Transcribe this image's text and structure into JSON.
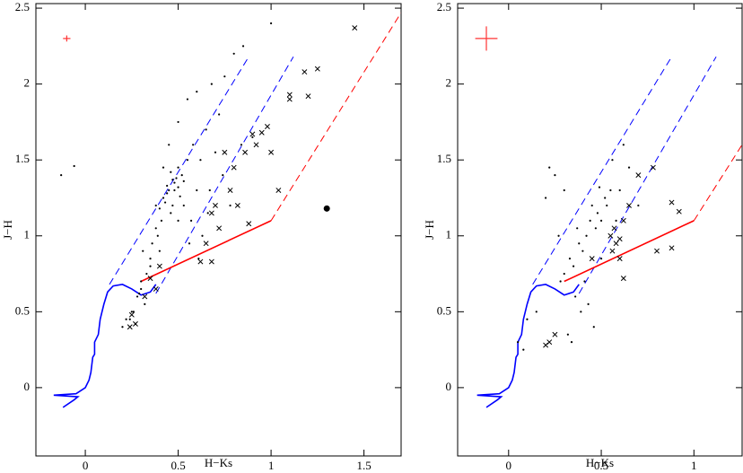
{
  "chart_data": [
    {
      "type": "scatter",
      "xlabel": "H−Ks",
      "ylabel": "J−H",
      "xlim": [
        -0.266,
        1.7
      ],
      "ylim": [
        -0.45,
        2.53
      ],
      "xticks": [
        0,
        0.5,
        1,
        1.5
      ],
      "yticks": [
        0,
        0.5,
        1,
        1.5,
        2,
        2.5
      ],
      "dots": {
        "color": "#000000",
        "x": [
          0.45,
          0.48,
          0.5,
          0.42,
          0.52,
          0.47,
          0.44,
          0.5,
          0.53,
          0.46,
          0.4,
          0.43,
          0.49,
          0.51,
          0.55,
          0.38,
          0.41,
          0.36,
          0.35,
          0.6,
          0.62,
          0.58,
          0.65,
          0.7,
          0.72,
          0.3,
          0.28,
          0.25,
          0.22,
          0.33,
          0.32,
          0.27,
          0.45,
          0.5,
          0.55,
          0.6,
          0.68,
          0.75,
          0.8,
          0.85,
          0.4,
          0.35,
          0.3,
          0.2,
          0.24,
          0.26,
          0.29,
          0.31,
          0.38,
          0.42,
          0.57,
          0.63,
          0.67,
          0.78,
          0.9,
          -0.13,
          -0.06,
          0.84,
          1.0,
          0.48,
          0.46,
          0.53,
          0.5,
          0.44,
          0.47,
          0.39,
          0.56,
          0.61,
          0.66,
          0.74
        ],
        "y": [
          1.3,
          1.35,
          1.32,
          1.25,
          1.4,
          1.2,
          1.28,
          1.45,
          1.36,
          1.15,
          1.18,
          1.22,
          1.38,
          1.26,
          1.5,
          1.05,
          1.1,
          0.95,
          0.85,
          1.3,
          1.5,
          1.6,
          1.7,
          1.55,
          1.8,
          0.65,
          0.6,
          0.5,
          0.45,
          0.75,
          0.55,
          0.42,
          1.6,
          1.75,
          1.9,
          1.95,
          2.0,
          2.05,
          2.2,
          2.25,
          0.9,
          0.8,
          0.7,
          0.4,
          0.45,
          0.5,
          0.62,
          0.9,
          1.2,
          1.45,
          1.1,
          1.0,
          1.3,
          1.2,
          1.65,
          1.4,
          1.46,
          1.6,
          2.4,
          1.3,
          1.42,
          1.2,
          1.1,
          1.33,
          1.37,
          1.0,
          0.95,
          0.85,
          1.15,
          1.4
        ]
      },
      "crosses": {
        "color": "#000000",
        "x": [
          1.45,
          1.18,
          1.25,
          1.2,
          1.1,
          1.1,
          0.98,
          0.95,
          0.9,
          0.92,
          0.86,
          1.0,
          0.75,
          0.8,
          0.78,
          0.82,
          0.7,
          0.68,
          0.88,
          0.72,
          0.65,
          0.68,
          0.62,
          1.04,
          0.4,
          0.35,
          0.38,
          0.32,
          0.25,
          0.27,
          0.24
        ],
        "y": [
          2.37,
          2.08,
          2.1,
          1.92,
          1.93,
          1.9,
          1.72,
          1.68,
          1.67,
          1.6,
          1.55,
          1.55,
          1.55,
          1.45,
          1.3,
          1.2,
          1.2,
          1.15,
          1.08,
          1.05,
          0.95,
          0.83,
          0.83,
          1.3,
          0.8,
          0.72,
          0.65,
          0.6,
          0.48,
          0.42,
          0.4
        ]
      },
      "big_dot": {
        "color": "#000000",
        "x": 1.3,
        "y": 1.18
      },
      "error_bar": {
        "color": "#ff3333",
        "x": -0.1,
        "y": 2.3,
        "xerr": 0.02,
        "yerr": 0.02
      },
      "lines": [
        {
          "color": "#0000ff",
          "dash": false,
          "x": [
            -0.12,
            -0.06,
            -0.04,
            -0.17,
            -0.05,
            0.0,
            0.02,
            0.03,
            0.04,
            0.05,
            0.05,
            0.07,
            0.08,
            0.1,
            0.12,
            0.15,
            0.2,
            0.25,
            0.3,
            0.35,
            0.38
          ],
          "y": [
            -0.13,
            -0.08,
            -0.06,
            -0.05,
            -0.04,
            0.0,
            0.05,
            0.1,
            0.2,
            0.22,
            0.3,
            0.35,
            0.45,
            0.55,
            0.63,
            0.67,
            0.68,
            0.65,
            0.61,
            0.63,
            0.68
          ]
        },
        {
          "color": "#0000ff",
          "dash": true,
          "x": [
            0.13,
            0.88
          ],
          "y": [
            0.68,
            2.18
          ]
        },
        {
          "color": "#0000ff",
          "dash": true,
          "x": [
            0.38,
            1.12
          ],
          "y": [
            0.62,
            2.18
          ]
        },
        {
          "color": "#ff0000",
          "dash": false,
          "x": [
            0.3,
            1.0
          ],
          "y": [
            0.7,
            1.1
          ]
        },
        {
          "color": "#ff0000",
          "dash": true,
          "x": [
            1.0,
            1.7
          ],
          "y": [
            1.1,
            2.47
          ]
        }
      ]
    },
    {
      "type": "scatter",
      "xlabel": "H−Ks",
      "ylabel": "J−H",
      "xlim": [
        -0.275,
        1.26
      ],
      "ylim": [
        -0.45,
        2.53
      ],
      "xticks": [
        0,
        0.5,
        1
      ],
      "yticks": [
        0,
        0.5,
        1,
        1.5,
        2,
        2.5
      ],
      "dots": {
        "color": "#000000",
        "x": [
          0.45,
          0.48,
          0.5,
          0.42,
          0.52,
          0.4,
          0.38,
          0.55,
          0.35,
          0.33,
          0.3,
          0.28,
          0.25,
          0.2,
          0.15,
          0.1,
          0.05,
          0.08,
          0.44,
          0.47,
          0.53,
          0.58,
          0.6,
          0.36,
          0.39,
          0.41,
          0.43,
          0.46,
          0.34,
          0.32,
          0.37,
          0.56,
          0.62,
          0.65,
          0.7,
          0.22,
          0.3,
          0.27,
          0.5,
          0.49
        ],
        "y": [
          1.2,
          1.15,
          1.1,
          1.0,
          1.25,
          0.9,
          0.95,
          1.3,
          0.8,
          0.85,
          0.75,
          0.7,
          1.4,
          1.25,
          0.5,
          0.45,
          0.3,
          0.25,
          1.1,
          1.05,
          1.2,
          1.1,
          1.3,
          0.6,
          0.5,
          0.7,
          0.55,
          0.4,
          0.3,
          0.35,
          1.05,
          1.5,
          1.6,
          1.45,
          1.2,
          1.45,
          1.3,
          1.0,
          0.85,
          1.32
        ]
      },
      "crosses": {
        "color": "#000000",
        "x": [
          0.57,
          0.55,
          0.58,
          0.6,
          0.62,
          0.65,
          0.56,
          0.7,
          0.78,
          0.88,
          0.92,
          0.8,
          0.88,
          0.62,
          0.45,
          0.6,
          0.2,
          0.22,
          0.25
        ],
        "y": [
          1.05,
          1.0,
          0.95,
          0.98,
          1.1,
          1.2,
          0.9,
          1.4,
          1.45,
          1.22,
          1.16,
          0.9,
          0.92,
          0.72,
          0.85,
          0.85,
          0.28,
          0.3,
          0.35
        ]
      },
      "error_bar": {
        "color": "#ff3333",
        "x": -0.12,
        "y": 2.3,
        "xerr": 0.06,
        "yerr": 0.08
      },
      "lines": [
        {
          "color": "#0000ff",
          "dash": false,
          "x": [
            -0.12,
            -0.06,
            -0.04,
            -0.17,
            -0.05,
            0.0,
            0.02,
            0.03,
            0.04,
            0.05,
            0.05,
            0.07,
            0.08,
            0.1,
            0.12,
            0.15,
            0.2,
            0.25,
            0.3,
            0.35,
            0.38
          ],
          "y": [
            -0.13,
            -0.08,
            -0.06,
            -0.05,
            -0.04,
            0.0,
            0.05,
            0.1,
            0.2,
            0.22,
            0.3,
            0.35,
            0.45,
            0.55,
            0.63,
            0.67,
            0.68,
            0.65,
            0.61,
            0.63,
            0.68
          ]
        },
        {
          "color": "#0000ff",
          "dash": true,
          "x": [
            0.13,
            0.88
          ],
          "y": [
            0.68,
            2.18
          ]
        },
        {
          "color": "#0000ff",
          "dash": true,
          "x": [
            0.38,
            1.12
          ],
          "y": [
            0.62,
            2.18
          ]
        },
        {
          "color": "#ff0000",
          "dash": false,
          "x": [
            0.3,
            1.0
          ],
          "y": [
            0.7,
            1.1
          ]
        },
        {
          "color": "#ff0000",
          "dash": true,
          "x": [
            1.0,
            1.26
          ],
          "y": [
            1.1,
            1.6
          ]
        }
      ]
    }
  ]
}
